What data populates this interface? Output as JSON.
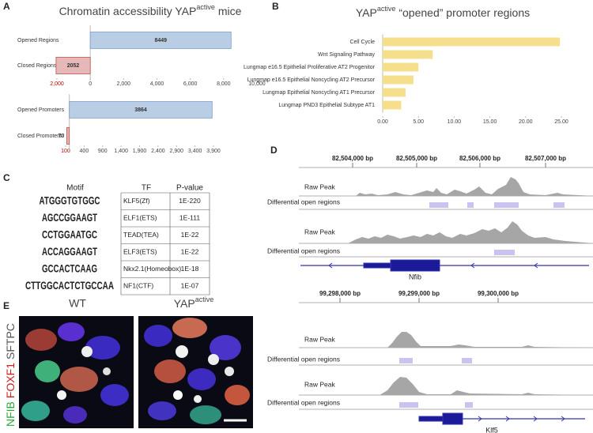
{
  "chart_data": [
    {
      "type": "bar",
      "orientation": "horizontal",
      "title": "Chromatin accessibility YAP",
      "title_superscript": "active",
      "title_suffix": "mice",
      "categories": [
        "Opened Regions",
        "Closed Regions"
      ],
      "values": [
        8449,
        -2052
      ],
      "value_labels": [
        "8449",
        "2052"
      ],
      "colors": [
        "#b9cde5",
        "#e6b9b8"
      ],
      "edgecolors": [
        "#7f9fd0",
        "#c0504d"
      ],
      "xlim": [
        -2000,
        10000
      ],
      "xticks": [
        {
          "value": -2000,
          "label": "2,000",
          "color": "#c00000"
        },
        0,
        {
          "value": 2000,
          "label": "2,000"
        },
        {
          "value": 4000,
          "label": "4,000"
        },
        {
          "value": 6000,
          "label": "6,000"
        },
        {
          "value": 8000,
          "label": "8,000"
        },
        {
          "value": 10000,
          "label": "10,000"
        }
      ]
    },
    {
      "type": "bar",
      "orientation": "horizontal",
      "categories": [
        "Opened Promoters",
        "Closed Promoters"
      ],
      "values": [
        3864,
        -70
      ],
      "value_labels": [
        "3864",
        "70"
      ],
      "colors": [
        "#b9cde5",
        "#e6b9b8"
      ],
      "edgecolors": [
        "#7f9fd0",
        "#c0504d"
      ],
      "xlim": [
        -100,
        3900
      ],
      "xticks": [
        {
          "value": -100,
          "label": "100",
          "color": "#c00000"
        },
        400,
        900,
        {
          "value": 1400,
          "label": "1,400"
        },
        {
          "value": 1900,
          "label": "1,900"
        },
        {
          "value": 2400,
          "label": "2,400"
        },
        {
          "value": 2900,
          "label": "2,900"
        },
        {
          "value": 3400,
          "label": "3,400"
        },
        {
          "value": 3900,
          "label": "3,900"
        }
      ]
    },
    {
      "type": "bar",
      "orientation": "horizontal",
      "title_prefix": "YAP",
      "title_superscript": "active",
      "title": "“opened” promoter regions",
      "categories": [
        "Cell Cycle",
        "Wnt Signaling Pathway",
        "Lungmap e16.5 Epithelial Proliferative AT2 Progenitor",
        "Lungmap e16.5 Epithelial Noncycling AT2 Precursor",
        "Lungmap Epithelial Noncycling AT1 Precursor",
        "Lungmap PND3 Epithelial Subtype AT1"
      ],
      "values": [
        24.8,
        7.0,
        5.0,
        4.3,
        3.2,
        2.6
      ],
      "color": "#f6df8c",
      "xlim": [
        0,
        25
      ],
      "xticks": [
        {
          "value": 0,
          "label": "0.00"
        },
        {
          "value": 5,
          "label": "5.00"
        },
        {
          "value": 10,
          "label": "10.00"
        },
        {
          "value": 15,
          "label": "15.00"
        },
        {
          "value": 20,
          "label": "20.00"
        },
        {
          "value": 25,
          "label": "25.00"
        }
      ]
    }
  ],
  "panel_letters": [
    "A",
    "B",
    "C",
    "D",
    "E"
  ],
  "motif_table": {
    "header": [
      "Motif",
      "TF",
      "P-value"
    ],
    "rows": [
      [
        "ATGGGTGTGGC",
        "KLF5(Zf)",
        "1E-220"
      ],
      [
        "AGCCGGAAGT",
        "ELF1(ETS)",
        "1E-111"
      ],
      [
        "CCTGGAATGC",
        "TEAD(TEA)",
        "1E-22"
      ],
      [
        "ACCAGGAAGT",
        "ELF3(ETS)",
        "1E-22"
      ],
      [
        "GCCACTCAAG",
        "Nkx2.1(Homeobox)",
        "1E-18"
      ],
      [
        "CTTGGCACTCTGCCAA",
        "NF1(CTF)",
        "1E-07"
      ]
    ]
  },
  "tracks": [
    {
      "ruler": [
        "82,504,000 bp",
        "82,505,000 bp",
        "82,506,000 bp",
        "82,507,000 bp"
      ],
      "labels": [
        "Raw Peak",
        "Differential open regions",
        "Raw Peak",
        "Differential open regions"
      ],
      "gene": "Nfib"
    },
    {
      "ruler": [
        "99,298,000 bp",
        "99,299,000 bp",
        "99,300,000 bp"
      ],
      "labels": [
        "Raw Peak",
        "Differential open regions",
        "Raw Peak",
        "Differential open regions"
      ],
      "gene": "Klf5"
    }
  ],
  "images": {
    "left_label": "WT",
    "right_label": "YAP",
    "right_label_superscript": "active",
    "stains": [
      "NFIB",
      "FOXF1",
      "SFTPC"
    ]
  }
}
